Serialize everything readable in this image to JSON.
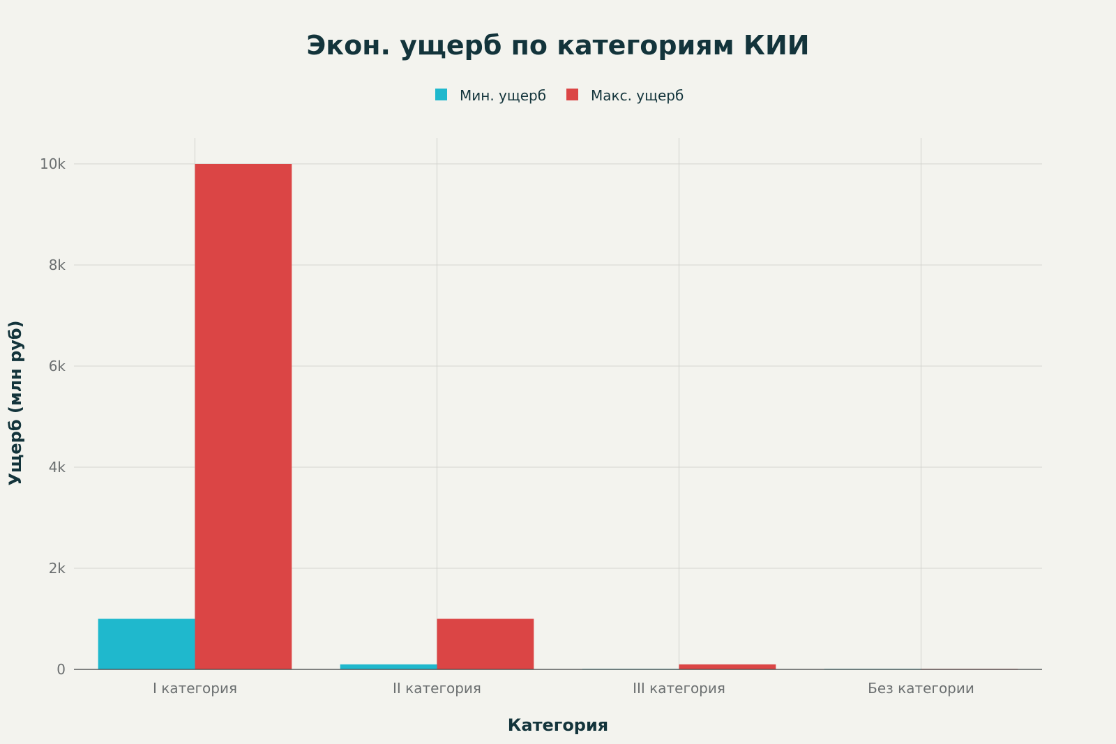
{
  "chart_data": {
    "type": "bar",
    "title": "Экон. ущерб по категориям КИИ",
    "xlabel": "Категория",
    "ylabel": "Ущерб (млн руб)",
    "categories": [
      "I категория",
      "II категория",
      "III категория",
      "Без категории"
    ],
    "series": [
      {
        "name": "Мин. ущерб",
        "color": "#1fb8cd",
        "values": [
          1000,
          100,
          10,
          1
        ]
      },
      {
        "name": "Макс. ущерб",
        "color": "#db4545",
        "values": [
          10000,
          1000,
          100,
          10
        ]
      }
    ],
    "ylim": [
      0,
      10500
    ],
    "yticks": [
      0,
      2000,
      4000,
      6000,
      8000,
      10000
    ],
    "ytick_labels": [
      "0",
      "2k",
      "4k",
      "6k",
      "8k",
      "10k"
    ],
    "grid": true,
    "legend_position": "top-center",
    "background_color": "#f3f3ee"
  }
}
